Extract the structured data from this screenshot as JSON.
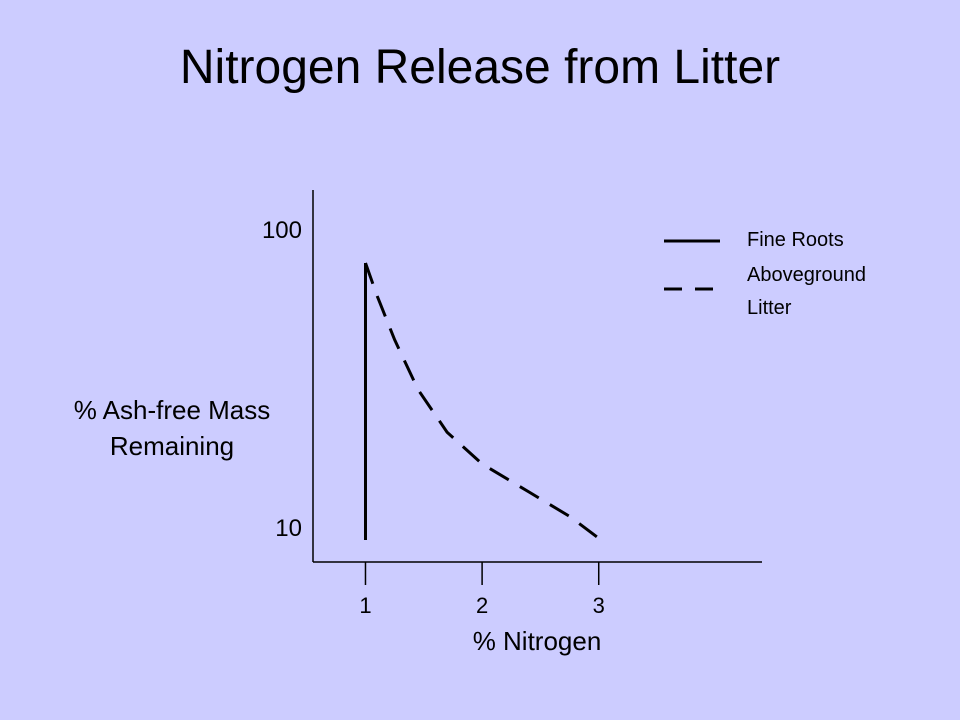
{
  "chart_data": {
    "type": "line",
    "title": "Nitrogen Release from Litter",
    "xlabel": "% Nitrogen",
    "ylabel_lines": [
      "% Ash-free Mass",
      "Remaining"
    ],
    "y_scale": "log",
    "ylim": [
      10,
      100
    ],
    "xlim": [
      0.55,
      4.4
    ],
    "x_ticks": [
      1,
      2,
      3
    ],
    "y_ticks": [
      100,
      10
    ],
    "grid": false,
    "legend_position": "top-right",
    "series": [
      {
        "name": "Fine Roots",
        "style": "solid",
        "color": "#000000",
        "x": [
          1.0,
          1.0
        ],
        "y": [
          85,
          10
        ]
      },
      {
        "name": "Aboveground Litter",
        "style": "dashed",
        "color": "#000000",
        "x": [
          1.0,
          1.1,
          1.25,
          1.45,
          1.7,
          2.0,
          2.4,
          2.75,
          3.05
        ],
        "y": [
          85,
          66,
          47,
          32,
          23,
          18,
          14.5,
          12,
          9.8
        ]
      }
    ]
  },
  "legend": {
    "items": [
      {
        "label_lines": [
          "Fine Roots"
        ],
        "style": "solid"
      },
      {
        "label_lines": [
          "Aboveground",
          "Litter"
        ],
        "style": "dashed"
      }
    ]
  },
  "colors": {
    "background": "#ccccff",
    "ink": "#000000"
  }
}
